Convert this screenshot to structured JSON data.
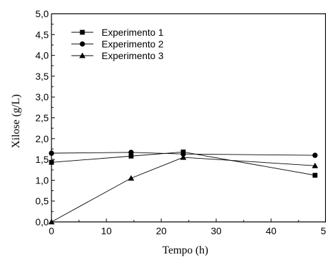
{
  "chart_data": {
    "type": "line",
    "title": "",
    "xlabel": "Tempo (h)",
    "ylabel": "Xilose (g/L)",
    "xlim": [
      0,
      50
    ],
    "ylim": [
      0,
      5.0
    ],
    "xticks": [
      "0",
      "10",
      "20",
      "30",
      "40",
      "50"
    ],
    "yticks": [
      "0,0",
      "0,5",
      "1,0",
      "1,5",
      "2,0",
      "2,5",
      "3,0",
      "3,5",
      "4,0",
      "4,5",
      "5,0"
    ],
    "grid": false,
    "legend_position": "top-left",
    "series": [
      {
        "name": "Experimento 1",
        "marker": "square",
        "x": [
          0,
          14.5,
          24,
          48
        ],
        "y": [
          1.43,
          1.58,
          1.68,
          1.12
        ]
      },
      {
        "name": "Experimento 2",
        "marker": "circle",
        "x": [
          0,
          14.5,
          24,
          48
        ],
        "y": [
          1.65,
          1.67,
          1.63,
          1.6
        ]
      },
      {
        "name": "Experimento 3",
        "marker": "triangle",
        "x": [
          0,
          14.5,
          24,
          48
        ],
        "y": [
          0.0,
          1.05,
          1.55,
          1.35
        ]
      }
    ]
  }
}
